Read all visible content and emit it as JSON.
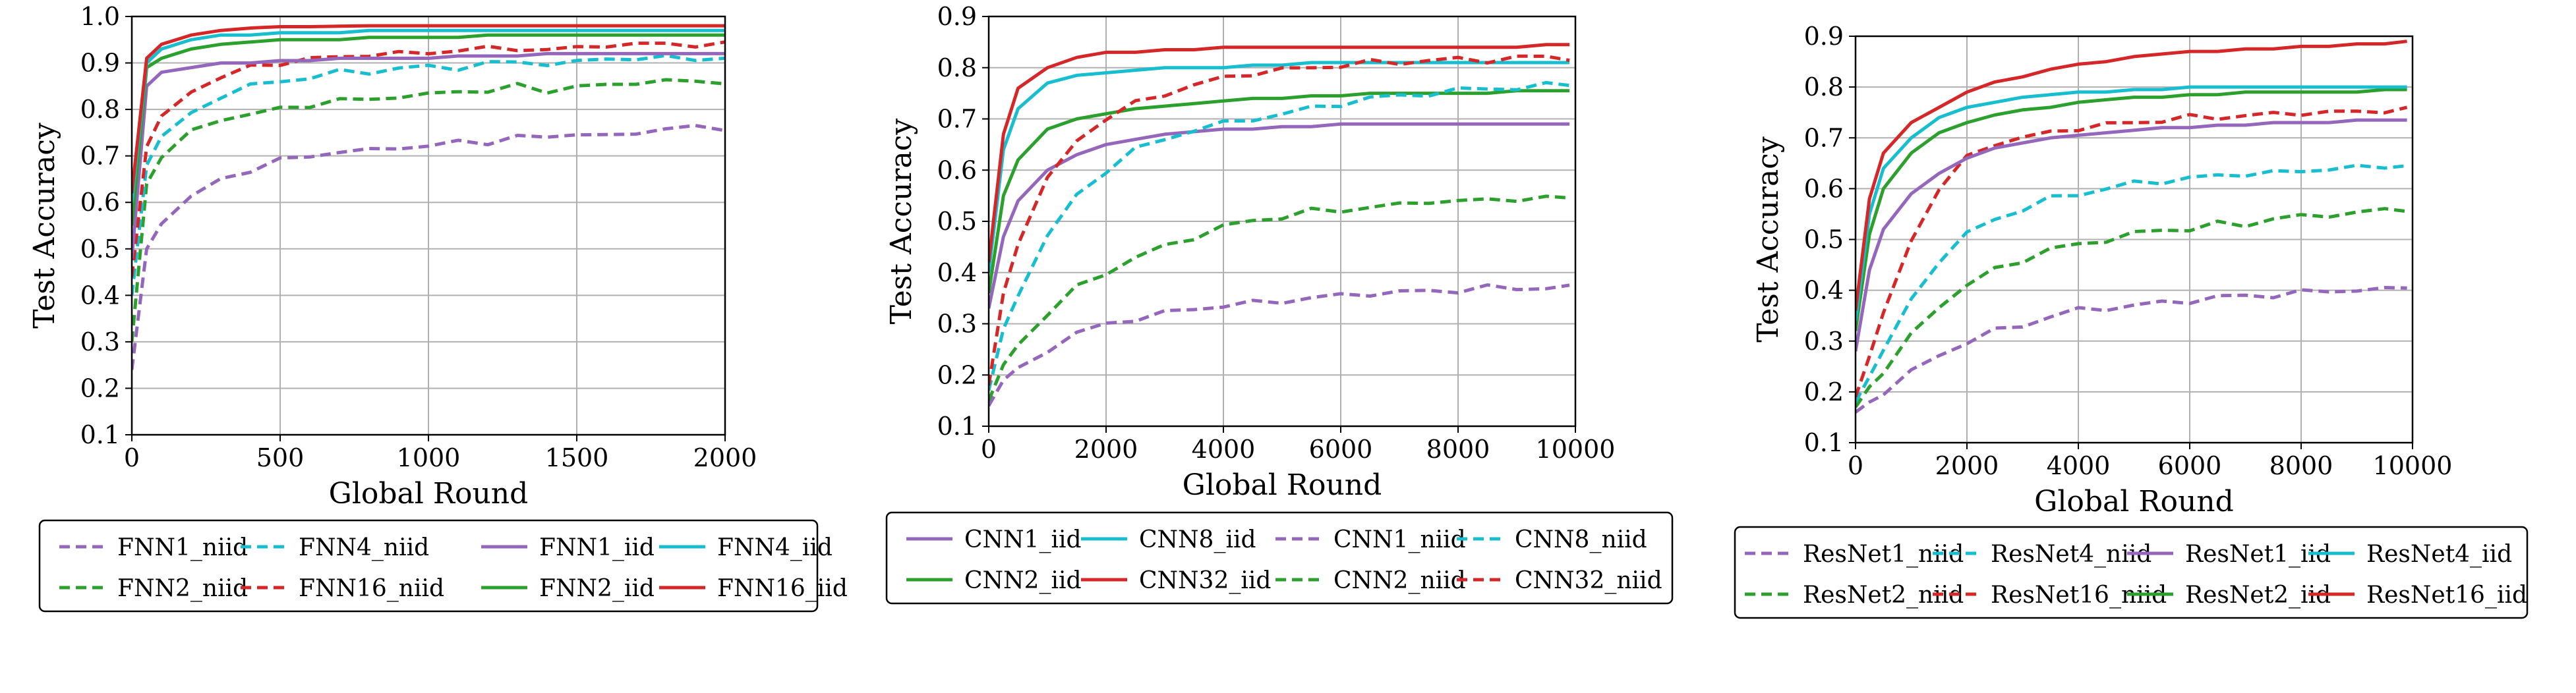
{
  "chart_data": [
    {
      "type": "line",
      "xlabel": "Global Round",
      "ylabel": "Test Accuracy",
      "xlim": [
        0,
        2000
      ],
      "ylim": [
        0.1,
        1.0
      ],
      "xticks": [
        0,
        500,
        1000,
        1500,
        2000
      ],
      "yticks": [
        0.1,
        0.2,
        0.3,
        0.4,
        0.5,
        0.6,
        0.7,
        0.8,
        0.9,
        1.0
      ],
      "grid": true,
      "legend_placement": "below",
      "legend_columns": 4,
      "x": [
        0,
        50,
        100,
        200,
        300,
        400,
        500,
        600,
        700,
        800,
        900,
        1000,
        1100,
        1200,
        1300,
        1400,
        1500,
        1600,
        1700,
        1800,
        1900,
        2000
      ],
      "series": [
        {
          "name": "FNN1_niid",
          "color": "#9467bd",
          "dash": true,
          "values": [
            0.24,
            0.5,
            0.56,
            0.61,
            0.65,
            0.67,
            0.69,
            0.7,
            0.71,
            0.71,
            0.72,
            0.72,
            0.73,
            0.73,
            0.74,
            0.74,
            0.75,
            0.74,
            0.75,
            0.76,
            0.76,
            0.76
          ]
        },
        {
          "name": "FNN2_niid",
          "color": "#2ca02c",
          "dash": true,
          "values": [
            0.3,
            0.64,
            0.7,
            0.75,
            0.78,
            0.79,
            0.8,
            0.81,
            0.82,
            0.82,
            0.83,
            0.83,
            0.84,
            0.84,
            0.85,
            0.84,
            0.85,
            0.85,
            0.86,
            0.86,
            0.86,
            0.86
          ]
        },
        {
          "name": "FNN4_niid",
          "color": "#17becf",
          "dash": true,
          "values": [
            0.4,
            0.68,
            0.74,
            0.79,
            0.83,
            0.85,
            0.86,
            0.87,
            0.88,
            0.88,
            0.89,
            0.89,
            0.89,
            0.9,
            0.9,
            0.9,
            0.9,
            0.91,
            0.91,
            0.91,
            0.91,
            0.91
          ]
        },
        {
          "name": "FNN16_niid",
          "color": "#d62728",
          "dash": true,
          "values": [
            0.44,
            0.72,
            0.78,
            0.84,
            0.87,
            0.89,
            0.9,
            0.91,
            0.91,
            0.92,
            0.92,
            0.92,
            0.93,
            0.93,
            0.93,
            0.93,
            0.93,
            0.94,
            0.94,
            0.94,
            0.94,
            0.94
          ]
        },
        {
          "name": "FNN1_iid",
          "color": "#9467bd",
          "dash": false,
          "values": [
            0.48,
            0.85,
            0.88,
            0.89,
            0.9,
            0.9,
            0.905,
            0.905,
            0.91,
            0.91,
            0.91,
            0.91,
            0.915,
            0.915,
            0.915,
            0.92,
            0.92,
            0.92,
            0.92,
            0.92,
            0.92,
            0.92
          ]
        },
        {
          "name": "FNN2_iid",
          "color": "#2ca02c",
          "dash": false,
          "values": [
            0.55,
            0.89,
            0.91,
            0.93,
            0.94,
            0.945,
            0.95,
            0.95,
            0.95,
            0.955,
            0.955,
            0.955,
            0.955,
            0.96,
            0.96,
            0.96,
            0.96,
            0.96,
            0.96,
            0.96,
            0.96,
            0.96
          ]
        },
        {
          "name": "FNN4_iid",
          "color": "#17becf",
          "dash": false,
          "values": [
            0.6,
            0.9,
            0.93,
            0.95,
            0.96,
            0.96,
            0.965,
            0.965,
            0.965,
            0.97,
            0.97,
            0.97,
            0.97,
            0.97,
            0.97,
            0.97,
            0.97,
            0.97,
            0.97,
            0.97,
            0.97,
            0.97
          ]
        },
        {
          "name": "FNN16_iid",
          "color": "#d62728",
          "dash": false,
          "values": [
            0.62,
            0.91,
            0.94,
            0.96,
            0.97,
            0.975,
            0.978,
            0.978,
            0.979,
            0.98,
            0.98,
            0.98,
            0.98,
            0.98,
            0.98,
            0.98,
            0.98,
            0.98,
            0.98,
            0.98,
            0.98,
            0.98
          ]
        }
      ],
      "legend_order": [
        "FNN1_niid",
        "FNN4_niid",
        "FNN1_iid",
        "FNN4_iid",
        "FNN2_niid",
        "FNN16_niid",
        "FNN2_iid",
        "FNN16_iid"
      ]
    },
    {
      "type": "line",
      "xlabel": "Global Round",
      "ylabel": "Test Accuracy",
      "xlim": [
        0,
        10000
      ],
      "ylim": [
        0.1,
        0.9
      ],
      "xticks": [
        0,
        2000,
        4000,
        6000,
        8000,
        10000
      ],
      "yticks": [
        0.1,
        0.2,
        0.3,
        0.4,
        0.5,
        0.6,
        0.7,
        0.8,
        0.9
      ],
      "grid": true,
      "legend_placement": "below",
      "legend_columns": 4,
      "x": [
        0,
        250,
        500,
        1000,
        1500,
        2000,
        2500,
        3000,
        3500,
        4000,
        4500,
        5000,
        5500,
        6000,
        6500,
        7000,
        7500,
        8000,
        8500,
        9000,
        9500,
        9900
      ],
      "series": [
        {
          "name": "CNN1_iid",
          "color": "#9467bd",
          "dash": false,
          "values": [
            0.33,
            0.47,
            0.54,
            0.6,
            0.63,
            0.65,
            0.66,
            0.67,
            0.675,
            0.68,
            0.68,
            0.685,
            0.685,
            0.69,
            0.69,
            0.69,
            0.69,
            0.69,
            0.69,
            0.69,
            0.69,
            0.69
          ]
        },
        {
          "name": "CNN2_iid",
          "color": "#2ca02c",
          "dash": false,
          "values": [
            0.36,
            0.55,
            0.62,
            0.68,
            0.7,
            0.71,
            0.72,
            0.725,
            0.73,
            0.735,
            0.74,
            0.74,
            0.745,
            0.745,
            0.75,
            0.75,
            0.75,
            0.75,
            0.75,
            0.755,
            0.755,
            0.755
          ]
        },
        {
          "name": "CNN8_iid",
          "color": "#17becf",
          "dash": false,
          "values": [
            0.4,
            0.64,
            0.72,
            0.77,
            0.785,
            0.79,
            0.795,
            0.8,
            0.8,
            0.8,
            0.805,
            0.805,
            0.81,
            0.81,
            0.81,
            0.81,
            0.81,
            0.81,
            0.81,
            0.81,
            0.81,
            0.81
          ]
        },
        {
          "name": "CNN32_iid",
          "color": "#d62728",
          "dash": false,
          "values": [
            0.42,
            0.67,
            0.76,
            0.8,
            0.82,
            0.83,
            0.83,
            0.835,
            0.835,
            0.84,
            0.84,
            0.84,
            0.84,
            0.84,
            0.84,
            0.84,
            0.84,
            0.84,
            0.84,
            0.84,
            0.845,
            0.845
          ]
        },
        {
          "name": "CNN1_niid",
          "color": "#9467bd",
          "dash": true,
          "values": [
            0.14,
            0.19,
            0.21,
            0.25,
            0.28,
            0.3,
            0.31,
            0.32,
            0.33,
            0.335,
            0.34,
            0.345,
            0.35,
            0.355,
            0.36,
            0.36,
            0.365,
            0.365,
            0.37,
            0.37,
            0.37,
            0.37
          ]
        },
        {
          "name": "CNN2_niid",
          "color": "#2ca02c",
          "dash": true,
          "values": [
            0.15,
            0.22,
            0.26,
            0.32,
            0.37,
            0.4,
            0.43,
            0.45,
            0.47,
            0.49,
            0.5,
            0.51,
            0.52,
            0.52,
            0.53,
            0.53,
            0.54,
            0.54,
            0.54,
            0.545,
            0.545,
            0.545
          ]
        },
        {
          "name": "CNN8_niid",
          "color": "#17becf",
          "dash": true,
          "values": [
            0.17,
            0.29,
            0.36,
            0.47,
            0.55,
            0.6,
            0.64,
            0.66,
            0.68,
            0.69,
            0.7,
            0.71,
            0.72,
            0.73,
            0.74,
            0.745,
            0.75,
            0.755,
            0.76,
            0.76,
            0.765,
            0.77
          ]
        },
        {
          "name": "CNN32_niid",
          "color": "#d62728",
          "dash": true,
          "values": [
            0.18,
            0.36,
            0.46,
            0.58,
            0.66,
            0.7,
            0.73,
            0.75,
            0.765,
            0.78,
            0.79,
            0.795,
            0.8,
            0.805,
            0.81,
            0.81,
            0.815,
            0.815,
            0.815,
            0.82,
            0.82,
            0.82
          ]
        }
      ],
      "legend_order": [
        "CNN1_iid",
        "CNN8_iid",
        "CNN1_niid",
        "CNN8_niid",
        "CNN2_iid",
        "CNN32_iid",
        "CNN2_niid",
        "CNN32_niid"
      ]
    },
    {
      "type": "line",
      "xlabel": "Global Round",
      "ylabel": "Test Accuracy",
      "xlim": [
        0,
        10000
      ],
      "ylim": [
        0.1,
        0.9
      ],
      "xticks": [
        0,
        2000,
        4000,
        6000,
        8000,
        10000
      ],
      "yticks": [
        0.1,
        0.2,
        0.3,
        0.4,
        0.5,
        0.6,
        0.7,
        0.8,
        0.9
      ],
      "grid": true,
      "legend_placement": "below",
      "legend_columns": 4,
      "x": [
        0,
        250,
        500,
        1000,
        1500,
        2000,
        2500,
        3000,
        3500,
        4000,
        4500,
        5000,
        5500,
        6000,
        6500,
        7000,
        7500,
        8000,
        8500,
        9000,
        9500,
        9900
      ],
      "series": [
        {
          "name": "ResNet1_niid",
          "color": "#9467bd",
          "dash": true,
          "values": [
            0.16,
            0.18,
            0.2,
            0.24,
            0.27,
            0.3,
            0.32,
            0.33,
            0.35,
            0.36,
            0.365,
            0.37,
            0.375,
            0.38,
            0.385,
            0.39,
            0.39,
            0.395,
            0.4,
            0.4,
            0.4,
            0.41
          ]
        },
        {
          "name": "ResNet2_niid",
          "color": "#2ca02c",
          "dash": true,
          "values": [
            0.17,
            0.21,
            0.24,
            0.31,
            0.37,
            0.41,
            0.44,
            0.46,
            0.48,
            0.49,
            0.5,
            0.51,
            0.52,
            0.52,
            0.53,
            0.53,
            0.54,
            0.545,
            0.55,
            0.55,
            0.56,
            0.56
          ]
        },
        {
          "name": "ResNet4_niid",
          "color": "#17becf",
          "dash": true,
          "values": [
            0.18,
            0.23,
            0.28,
            0.38,
            0.46,
            0.51,
            0.54,
            0.56,
            0.58,
            0.59,
            0.6,
            0.61,
            0.615,
            0.62,
            0.625,
            0.63,
            0.63,
            0.635,
            0.64,
            0.64,
            0.645,
            0.645
          ]
        },
        {
          "name": "ResNet16_niid",
          "color": "#d62728",
          "dash": true,
          "values": [
            0.19,
            0.27,
            0.35,
            0.5,
            0.6,
            0.66,
            0.69,
            0.7,
            0.71,
            0.72,
            0.725,
            0.73,
            0.735,
            0.74,
            0.74,
            0.745,
            0.745,
            0.75,
            0.75,
            0.75,
            0.755,
            0.755
          ]
        },
        {
          "name": "ResNet1_iid",
          "color": "#9467bd",
          "dash": false,
          "values": [
            0.28,
            0.44,
            0.52,
            0.59,
            0.63,
            0.66,
            0.68,
            0.69,
            0.7,
            0.705,
            0.71,
            0.715,
            0.72,
            0.72,
            0.725,
            0.725,
            0.73,
            0.73,
            0.73,
            0.735,
            0.735,
            0.735
          ]
        },
        {
          "name": "ResNet2_iid",
          "color": "#2ca02c",
          "dash": false,
          "values": [
            0.32,
            0.51,
            0.6,
            0.67,
            0.71,
            0.73,
            0.745,
            0.755,
            0.76,
            0.77,
            0.775,
            0.78,
            0.78,
            0.785,
            0.785,
            0.79,
            0.79,
            0.79,
            0.79,
            0.79,
            0.795,
            0.795
          ]
        },
        {
          "name": "ResNet4_iid",
          "color": "#17becf",
          "dash": false,
          "values": [
            0.34,
            0.55,
            0.64,
            0.7,
            0.74,
            0.76,
            0.77,
            0.78,
            0.785,
            0.79,
            0.79,
            0.795,
            0.795,
            0.8,
            0.8,
            0.8,
            0.8,
            0.8,
            0.8,
            0.8,
            0.8,
            0.8
          ]
        },
        {
          "name": "ResNet16_iid",
          "color": "#d62728",
          "dash": false,
          "values": [
            0.36,
            0.58,
            0.67,
            0.73,
            0.76,
            0.79,
            0.81,
            0.82,
            0.835,
            0.845,
            0.85,
            0.86,
            0.865,
            0.87,
            0.87,
            0.875,
            0.875,
            0.88,
            0.88,
            0.885,
            0.885,
            0.89
          ]
        }
      ],
      "legend_order": [
        "ResNet1_niid",
        "ResNet4_niid",
        "ResNet1_iid",
        "ResNet4_iid",
        "ResNet2_niid",
        "ResNet16_niid",
        "ResNet2_iid",
        "ResNet16_iid"
      ]
    }
  ]
}
